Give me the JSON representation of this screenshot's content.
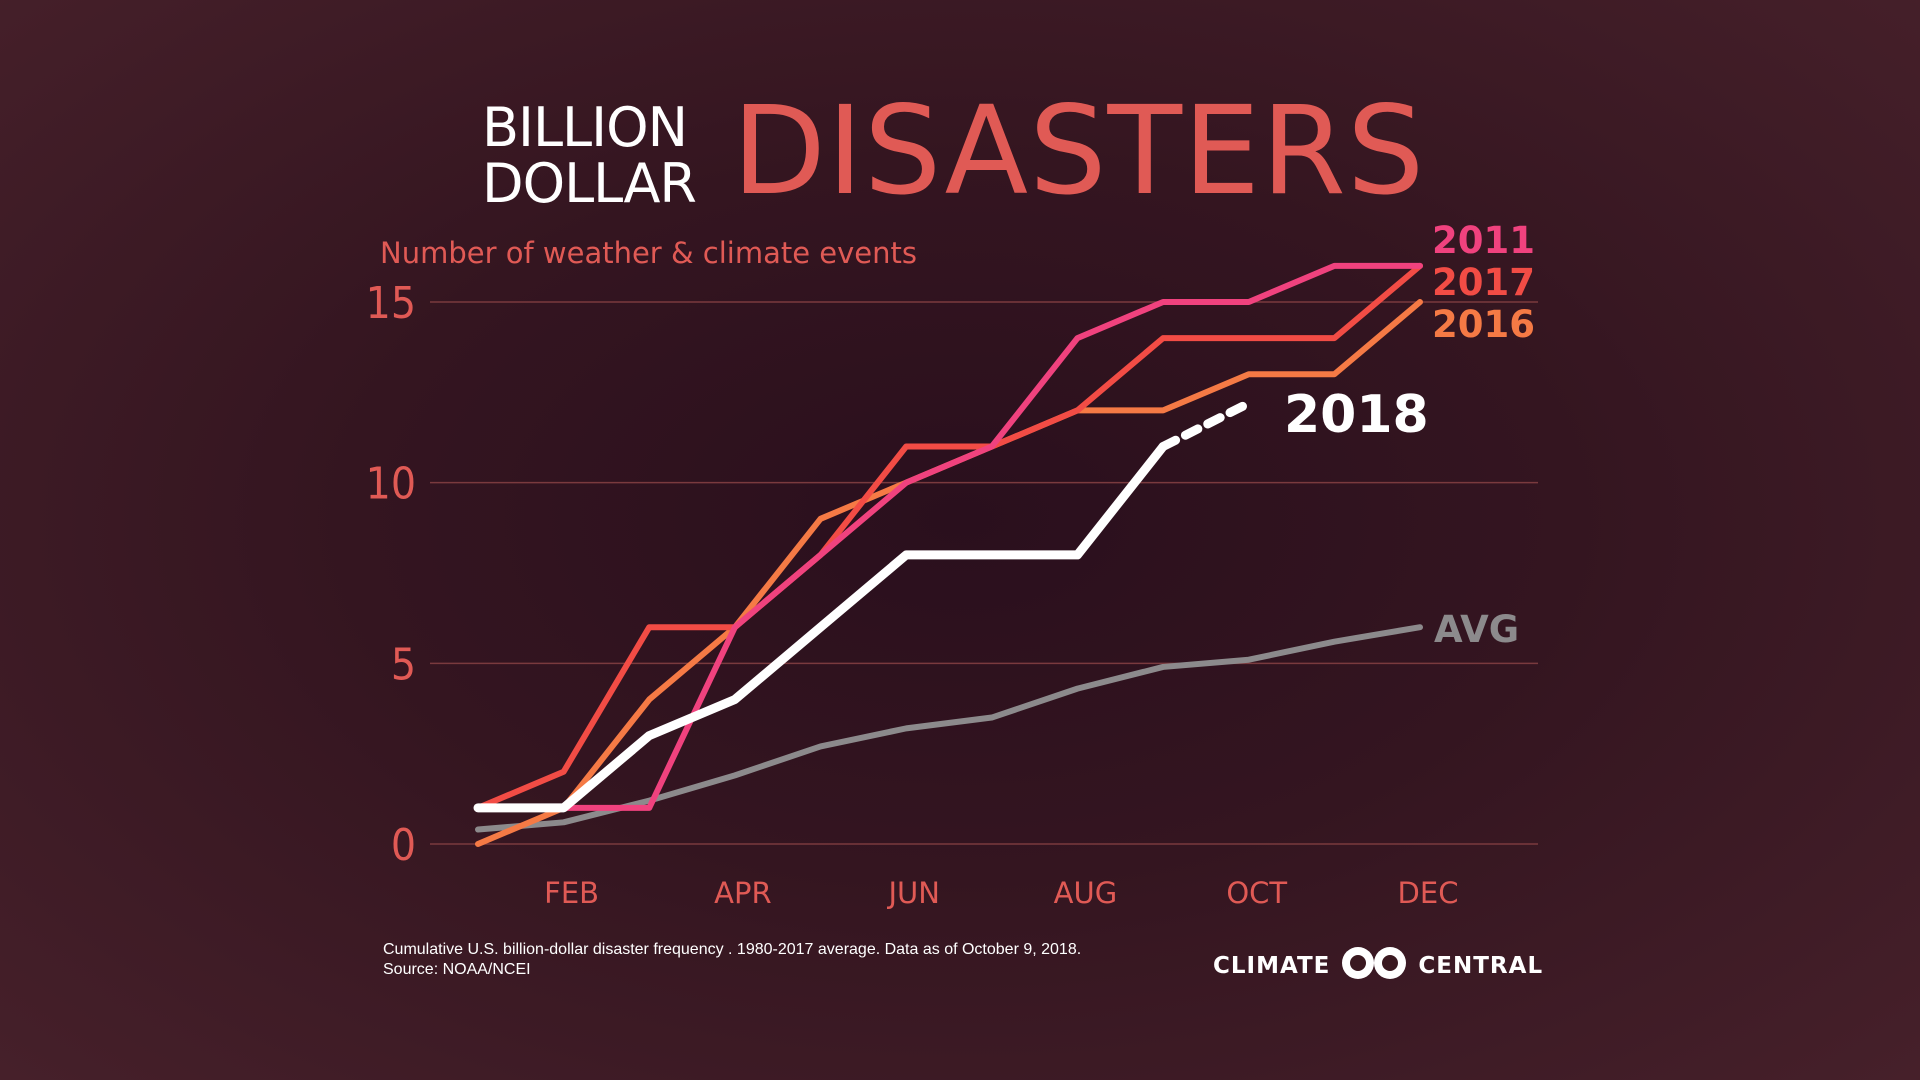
{
  "title": {
    "line1": "BILLION",
    "line2": "DOLLAR",
    "big": "DISASTERS"
  },
  "subtitle": "Number of weather & climate events",
  "footnote": {
    "line1": "Cumulative U.S. billion-dollar disaster frequency . 1980-2017 average. Data as of October 9, 2018.",
    "line2": "Source: NOAA/NCEI"
  },
  "logo": {
    "left": "CLIMATE",
    "right": "CENTRAL"
  },
  "colors": {
    "accent": "#e05a55",
    "gridline": "#7a3a3e",
    "s2011": "#f0427e",
    "s2017": "#f24c45",
    "s2016": "#f57a45",
    "s2018": "#ffffff",
    "avg": "#8c8a8c"
  },
  "chart_data": {
    "type": "line",
    "ylabel": "Number of weather & climate events",
    "ylim": [
      0,
      15
    ],
    "yticks": [
      0,
      5,
      10,
      15
    ],
    "x": [
      1,
      2,
      3,
      4,
      5,
      6,
      7,
      8,
      9,
      10,
      11,
      12
    ],
    "xtick_positions": [
      2,
      4,
      6,
      8,
      10,
      12
    ],
    "xtick_labels": [
      "FEB",
      "APR",
      "JUN",
      "AUG",
      "OCT",
      "DEC"
    ],
    "grid": true,
    "series": [
      {
        "name": "2011",
        "color": "#f0427e",
        "values": [
          1,
          1,
          1,
          6,
          8,
          10,
          11,
          14,
          15,
          15,
          16,
          16
        ]
      },
      {
        "name": "2017",
        "color": "#f24c45",
        "values": [
          1,
          2,
          6,
          6,
          8,
          11,
          11,
          12,
          14,
          14,
          14,
          16
        ]
      },
      {
        "name": "2016",
        "color": "#f57a45",
        "values": [
          0,
          1,
          4,
          6,
          9,
          10,
          11,
          12,
          12,
          13,
          13,
          15
        ]
      },
      {
        "name": "2018",
        "color": "#ffffff",
        "values": [
          1,
          1,
          3,
          4,
          6,
          8,
          8,
          8,
          11,
          null,
          null,
          null
        ],
        "projected": {
          "x": [
            9,
            10
          ],
          "values": [
            11,
            12.2
          ]
        }
      },
      {
        "name": "AVG",
        "color": "#8c8a8c",
        "values": [
          0.4,
          0.6,
          1.2,
          1.9,
          2.7,
          3.2,
          3.5,
          4.3,
          4.9,
          5.1,
          5.6,
          6.0
        ]
      }
    ]
  }
}
